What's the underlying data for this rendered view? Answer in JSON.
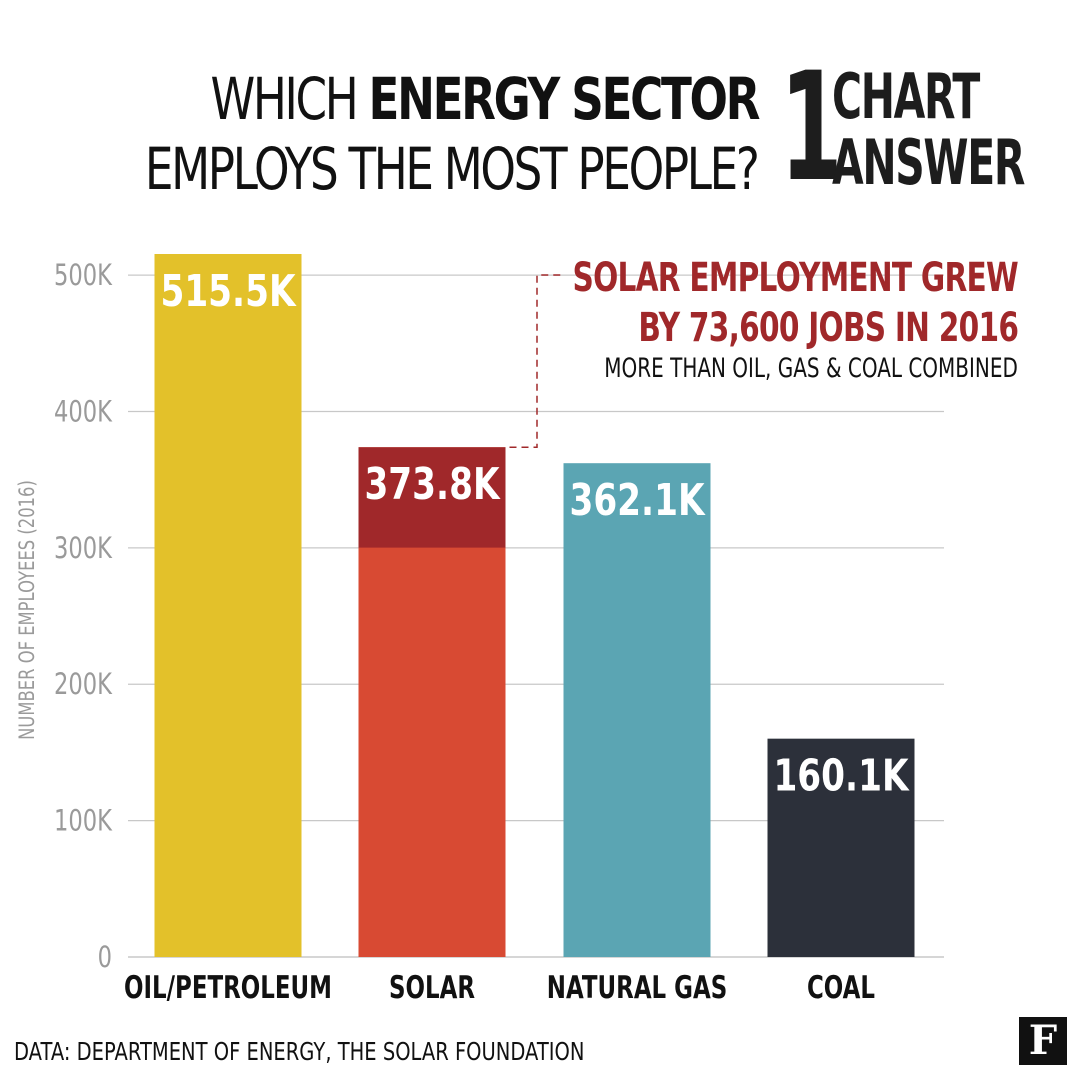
{
  "title": {
    "line1_plain": "WHICH ",
    "line1_bold": "ENERGY SECTOR",
    "line2": "EMPLOYS THE MOST PEOPLE?"
  },
  "logo": {
    "number": "1",
    "word1": "CHART",
    "word2": "ANSWER"
  },
  "annotation": {
    "line1": "SOLAR EMPLOYMENT GREW",
    "line2": "BY 73,600 JOBS IN 2016",
    "subline": "MORE THAN OIL, GAS & COAL COMBINED"
  },
  "source": "DATA: DEPARTMENT OF ENERGY, THE SOLAR FOUNDATION",
  "brand": "F",
  "colors": {
    "oil": "#e3c12a",
    "solar": "#d84a33",
    "solar_growth": "#a0282a",
    "gas": "#5ba5b3",
    "coal": "#2c303a",
    "grid": "#c8c8c8",
    "axis_text": "#9a9a9a"
  },
  "chart_data": {
    "type": "bar",
    "categories": [
      "OIL/PETROLEUM",
      "SOLAR",
      "NATURAL GAS",
      "COAL"
    ],
    "values": [
      515.5,
      373.8,
      362.1,
      160.1
    ],
    "value_labels": [
      "515.5K",
      "373.8K",
      "362.1K",
      "160.1K"
    ],
    "solar_growth_2016": 73.6,
    "ylabel": "NUMBER OF EMPLOYEES (2016)",
    "yticks": [
      0,
      100,
      200,
      300,
      400,
      500
    ],
    "ytick_labels": [
      "0",
      "100K",
      "200K",
      "300K",
      "400K",
      "500K"
    ],
    "ylim": [
      0,
      515.5
    ],
    "grid": true
  }
}
